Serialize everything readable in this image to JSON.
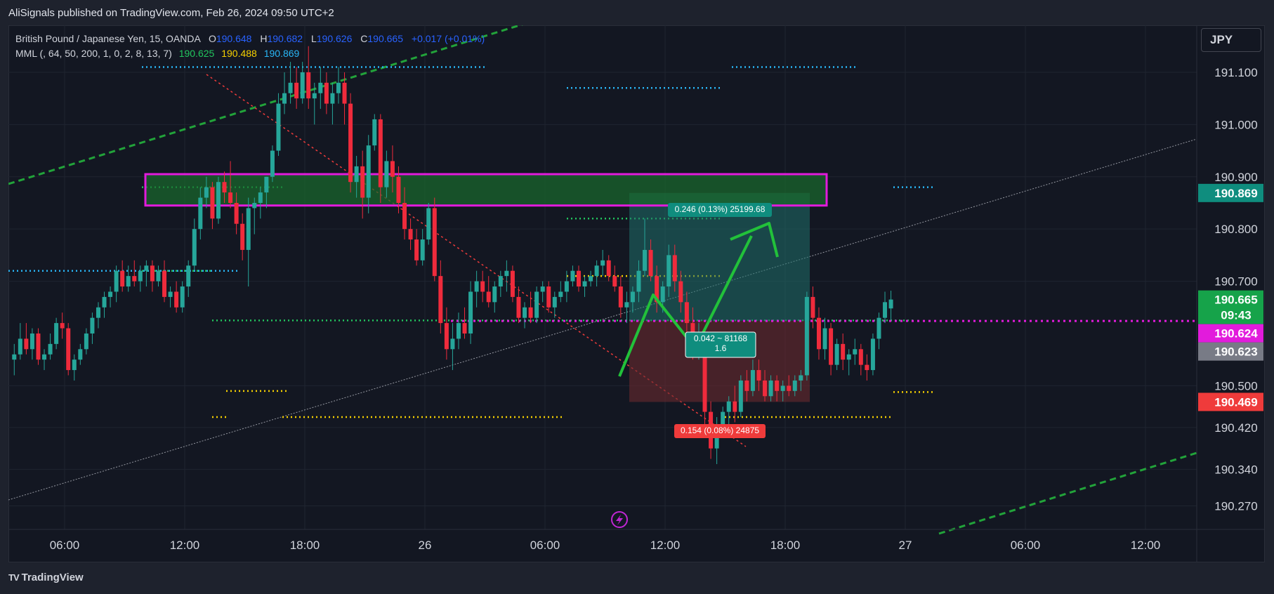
{
  "header": {
    "published": "AliSignals published on TradingView.com, Feb 26, 2024 09:50 UTC+2"
  },
  "legend": {
    "symbol": "British Pound / Japanese Yen, 15, OANDA",
    "ohlc": {
      "o_label": "O",
      "o": "190.648",
      "h_label": "H",
      "h": "190.682",
      "l_label": "L",
      "l": "190.626",
      "c_label": "C",
      "c": "190.665",
      "change": "+0.017 (+0.01%)"
    },
    "indicator": "MML (, 64, 50, 200, 1, 0, 2, 8, 13, 7)",
    "indicator_values": [
      "190.625",
      "190.488",
      "190.869"
    ]
  },
  "currency": "JPY",
  "footer": {
    "logo": "TV",
    "brand": "TradingView"
  },
  "colors": {
    "up": "#26a69a",
    "down": "#ef2b3c",
    "mml_green": "#22c55e",
    "mml_yellow": "#f5d000",
    "mml_blue": "#29b6f6",
    "zone": "#e21bdc",
    "arrow": "#22c13a"
  },
  "chart_data": {
    "type": "candlestick",
    "y_ticks": [
      "191.100",
      "191.000",
      "190.900",
      "190.800",
      "190.700",
      "190.500",
      "190.420",
      "190.340",
      "190.270"
    ],
    "x_ticks": [
      "06:00",
      "12:00",
      "18:00",
      "26",
      "06:00",
      "12:00",
      "18:00",
      "27",
      "06:00",
      "12:00"
    ],
    "ylim": [
      190.225,
      191.19
    ],
    "price_labels": [
      {
        "value": 190.869,
        "text": "190.869",
        "bg": "#0f8d7e",
        "fg": "#ffffff"
      },
      {
        "value": 190.665,
        "text": "190.665",
        "sub": "09:43",
        "bg": "#16a34a",
        "fg": "#ffffff"
      },
      {
        "value": 190.624,
        "text": "190.624",
        "bg": "#e21bdc",
        "fg": "#ffffff"
      },
      {
        "value": 190.623,
        "text": "190.623",
        "bg": "#787b86",
        "fg": "#ffffff"
      },
      {
        "value": 190.469,
        "text": "190.469",
        "bg": "#ef3b3b",
        "fg": "#ffffff"
      }
    ],
    "candles_ohlc": [
      [
        190.55,
        190.58,
        190.52,
        190.56
      ],
      [
        190.56,
        190.62,
        190.55,
        190.59
      ],
      [
        190.59,
        190.62,
        190.56,
        190.57
      ],
      [
        190.57,
        190.61,
        190.55,
        190.6
      ],
      [
        190.6,
        190.61,
        190.54,
        190.55
      ],
      [
        190.55,
        190.57,
        190.53,
        190.56
      ],
      [
        190.56,
        190.6,
        190.55,
        190.58
      ],
      [
        190.58,
        190.63,
        190.57,
        190.62
      ],
      [
        190.62,
        190.64,
        190.59,
        190.61
      ],
      [
        190.61,
        190.62,
        190.52,
        190.53
      ],
      [
        190.53,
        190.56,
        190.51,
        190.55
      ],
      [
        190.55,
        190.58,
        190.54,
        190.57
      ],
      [
        190.57,
        190.61,
        190.56,
        190.6
      ],
      [
        190.6,
        190.64,
        190.58,
        190.63
      ],
      [
        190.63,
        190.66,
        190.61,
        190.65
      ],
      [
        190.65,
        190.68,
        190.63,
        190.67
      ],
      [
        190.67,
        190.69,
        190.65,
        190.68
      ],
      [
        190.68,
        190.73,
        190.66,
        190.72
      ],
      [
        190.72,
        190.74,
        190.68,
        190.69
      ],
      [
        190.69,
        190.73,
        190.68,
        190.71
      ],
      [
        190.71,
        190.74,
        190.69,
        190.7
      ],
      [
        190.7,
        190.73,
        190.68,
        190.72
      ],
      [
        190.72,
        190.74,
        190.69,
        190.73
      ],
      [
        190.73,
        190.74,
        190.68,
        190.7
      ],
      [
        190.7,
        190.73,
        190.69,
        190.72
      ],
      [
        190.72,
        190.74,
        190.66,
        190.67
      ],
      [
        190.67,
        190.69,
        190.65,
        190.68
      ],
      [
        190.68,
        190.7,
        190.64,
        190.65
      ],
      [
        190.65,
        190.7,
        190.64,
        190.69
      ],
      [
        190.69,
        190.74,
        190.67,
        190.73
      ],
      [
        190.73,
        190.82,
        190.72,
        190.8
      ],
      [
        190.8,
        190.88,
        190.78,
        190.86
      ],
      [
        190.86,
        190.9,
        190.84,
        190.88
      ],
      [
        190.88,
        190.89,
        190.8,
        190.82
      ],
      [
        190.82,
        190.9,
        190.81,
        190.89
      ],
      [
        190.89,
        190.91,
        190.85,
        190.87
      ],
      [
        190.87,
        190.93,
        190.84,
        190.85
      ],
      [
        190.85,
        190.87,
        190.79,
        190.81
      ],
      [
        190.81,
        190.83,
        190.74,
        190.76
      ],
      [
        190.76,
        190.86,
        190.69,
        190.84
      ],
      [
        190.84,
        190.86,
        190.79,
        190.85
      ],
      [
        190.85,
        190.88,
        190.82,
        190.87
      ],
      [
        190.87,
        190.9,
        190.84,
        190.9
      ],
      [
        190.9,
        190.96,
        190.89,
        190.95
      ],
      [
        190.95,
        191.06,
        190.94,
        191.04
      ],
      [
        191.04,
        191.1,
        191.02,
        191.06
      ],
      [
        191.06,
        191.12,
        191.04,
        191.08
      ],
      [
        191.08,
        191.11,
        191.03,
        191.05
      ],
      [
        191.05,
        191.12,
        191.04,
        191.1
      ],
      [
        191.1,
        191.15,
        191.03,
        191.05
      ],
      [
        191.05,
        191.08,
        191.0,
        191.06
      ],
      [
        191.06,
        191.11,
        191.03,
        191.08
      ],
      [
        191.08,
        191.1,
        191.02,
        191.04
      ],
      [
        191.04,
        191.08,
        191.0,
        191.06
      ],
      [
        191.06,
        191.11,
        191.04,
        191.08
      ],
      [
        191.08,
        191.1,
        191.0,
        191.04
      ],
      [
        191.04,
        191.06,
        190.87,
        190.89
      ],
      [
        190.89,
        190.94,
        190.86,
        190.92
      ],
      [
        190.92,
        190.95,
        190.82,
        190.86
      ],
      [
        190.86,
        190.98,
        190.83,
        190.96
      ],
      [
        190.96,
        191.02,
        190.95,
        191.01
      ],
      [
        191.01,
        191.02,
        190.85,
        190.88
      ],
      [
        190.88,
        190.95,
        190.86,
        190.93
      ],
      [
        190.93,
        190.96,
        190.87,
        190.9
      ],
      [
        190.9,
        190.92,
        190.83,
        190.85
      ],
      [
        190.85,
        190.88,
        190.78,
        190.8
      ],
      [
        190.8,
        190.82,
        190.76,
        190.78
      ],
      [
        190.78,
        190.8,
        190.73,
        190.74
      ],
      [
        190.74,
        190.8,
        190.73,
        190.78
      ],
      [
        190.78,
        190.85,
        190.77,
        190.84
      ],
      [
        190.84,
        190.86,
        190.7,
        190.71
      ],
      [
        190.71,
        190.74,
        190.6,
        190.62
      ],
      [
        190.62,
        190.65,
        190.55,
        190.57
      ],
      [
        190.57,
        190.62,
        190.53,
        190.59
      ],
      [
        190.59,
        190.64,
        190.57,
        190.62
      ],
      [
        190.62,
        190.65,
        190.59,
        190.6
      ],
      [
        190.6,
        190.7,
        190.58,
        190.68
      ],
      [
        190.68,
        190.72,
        190.65,
        190.7
      ],
      [
        190.7,
        190.72,
        190.66,
        190.68
      ],
      [
        190.68,
        190.71,
        190.65,
        190.66
      ],
      [
        190.66,
        190.7,
        190.64,
        190.69
      ],
      [
        190.69,
        190.72,
        190.67,
        190.71
      ],
      [
        190.71,
        190.74,
        190.68,
        190.72
      ],
      [
        190.72,
        190.73,
        190.66,
        190.67
      ],
      [
        190.67,
        190.69,
        190.62,
        190.63
      ],
      [
        190.63,
        190.66,
        190.61,
        190.65
      ],
      [
        190.65,
        190.68,
        190.62,
        190.63
      ],
      [
        190.63,
        190.69,
        190.62,
        190.68
      ],
      [
        190.68,
        190.7,
        190.66,
        190.69
      ],
      [
        190.69,
        190.7,
        190.64,
        190.65
      ],
      [
        190.65,
        190.68,
        190.63,
        190.67
      ],
      [
        190.67,
        190.7,
        190.66,
        190.68
      ],
      [
        190.68,
        190.72,
        190.66,
        190.7
      ],
      [
        190.7,
        190.73,
        190.69,
        190.72
      ],
      [
        190.72,
        190.73,
        190.68,
        190.69
      ],
      [
        190.69,
        190.71,
        190.67,
        190.7
      ],
      [
        190.7,
        190.72,
        190.69,
        190.71
      ],
      [
        190.71,
        190.74,
        190.69,
        190.73
      ],
      [
        190.73,
        190.76,
        190.71,
        190.74
      ],
      [
        190.74,
        190.75,
        190.7,
        190.71
      ],
      [
        190.71,
        190.73,
        190.68,
        190.69
      ],
      [
        190.69,
        190.71,
        190.63,
        190.65
      ],
      [
        190.65,
        190.68,
        190.62,
        190.66
      ],
      [
        190.66,
        190.69,
        190.64,
        190.68
      ],
      [
        190.68,
        190.74,
        190.66,
        190.72
      ],
      [
        190.72,
        190.82,
        190.71,
        190.76
      ],
      [
        190.76,
        190.78,
        190.7,
        190.71
      ],
      [
        190.71,
        190.73,
        190.64,
        190.66
      ],
      [
        190.66,
        190.7,
        190.64,
        190.69
      ],
      [
        190.69,
        190.77,
        190.67,
        190.75
      ],
      [
        190.75,
        190.77,
        190.68,
        190.7
      ],
      [
        190.7,
        190.72,
        190.64,
        190.66
      ],
      [
        190.66,
        190.68,
        190.6,
        190.62
      ],
      [
        190.62,
        190.65,
        190.55,
        190.58
      ],
      [
        190.58,
        190.62,
        190.55,
        190.59
      ],
      [
        190.59,
        190.6,
        190.42,
        190.45
      ],
      [
        190.45,
        190.47,
        190.36,
        190.38
      ],
      [
        190.38,
        190.44,
        190.35,
        190.42
      ],
      [
        190.42,
        190.46,
        190.4,
        190.45
      ],
      [
        190.45,
        190.48,
        190.42,
        190.47
      ],
      [
        190.47,
        190.5,
        190.43,
        190.45
      ],
      [
        190.45,
        190.52,
        190.44,
        190.51
      ],
      [
        190.51,
        190.53,
        190.47,
        190.49
      ],
      [
        190.49,
        190.55,
        190.48,
        190.53
      ],
      [
        190.53,
        190.55,
        190.49,
        190.51
      ],
      [
        190.51,
        190.53,
        190.47,
        190.48
      ],
      [
        190.48,
        190.52,
        190.47,
        190.51
      ],
      [
        190.51,
        190.52,
        190.47,
        190.49
      ],
      [
        190.49,
        190.51,
        190.47,
        190.5
      ],
      [
        190.5,
        190.52,
        190.48,
        190.49
      ],
      [
        190.49,
        190.52,
        190.48,
        190.51
      ],
      [
        190.51,
        190.53,
        190.49,
        190.52
      ],
      [
        190.52,
        190.68,
        190.51,
        190.67
      ],
      [
        190.67,
        190.69,
        190.61,
        190.63
      ],
      [
        190.63,
        190.65,
        190.55,
        190.57
      ],
      [
        190.57,
        190.63,
        190.55,
        190.61
      ],
      [
        190.61,
        190.62,
        190.52,
        190.54
      ],
      [
        190.54,
        190.59,
        190.53,
        190.58
      ],
      [
        190.58,
        190.6,
        190.53,
        190.55
      ],
      [
        190.55,
        190.57,
        190.52,
        190.56
      ],
      [
        190.56,
        190.59,
        190.54,
        190.57
      ],
      [
        190.57,
        190.58,
        190.52,
        190.54
      ],
      [
        190.54,
        190.56,
        190.51,
        190.53
      ],
      [
        190.53,
        190.6,
        190.52,
        190.59
      ],
      [
        190.59,
        190.64,
        190.57,
        190.63
      ],
      [
        190.63,
        190.68,
        190.62,
        190.66
      ],
      [
        190.648,
        190.682,
        190.626,
        190.665
      ]
    ],
    "levels": [
      {
        "value": 191.11,
        "color": "#29b6f6",
        "from": 190,
        "to": 680
      },
      {
        "value": 191.11,
        "color": "#29b6f6",
        "from": 1030,
        "to": 1210
      },
      {
        "value": 191.07,
        "color": "#29b6f6",
        "from": 795,
        "to": 1015
      },
      {
        "value": 190.88,
        "color": "#29b6f6",
        "from": 1260,
        "to": 1320
      },
      {
        "value": 190.88,
        "color": "#22c55e",
        "from": 190,
        "to": 390
      },
      {
        "value": 190.82,
        "color": "#22c55e",
        "from": 795,
        "to": 1015
      },
      {
        "value": 190.72,
        "color": "#29b6f6",
        "from": 0,
        "to": 330
      },
      {
        "value": 190.72,
        "color": "#22c55e",
        "from": 190,
        "to": 290
      },
      {
        "value": 190.71,
        "color": "#f5d000",
        "from": 795,
        "to": 1015
      },
      {
        "value": 190.625,
        "color": "#22c55e",
        "from": 290,
        "to": 1290
      },
      {
        "value": 190.49,
        "color": "#f5d000",
        "from": 310,
        "to": 400
      },
      {
        "value": 190.488,
        "color": "#f5d000",
        "from": 1260,
        "to": 1320
      },
      {
        "value": 190.44,
        "color": "#f5d000",
        "from": 290,
        "to": 310
      },
      {
        "value": 190.44,
        "color": "#f5d000",
        "from": 390,
        "to": 790
      },
      {
        "value": 190.44,
        "color": "#f5d000",
        "from": 1020,
        "to": 1260
      }
    ],
    "trade": {
      "entry": 190.624,
      "target": 190.869,
      "stop": 190.469,
      "target_label": "0.246 (0.13%) 25199.68",
      "mid_label_1": "0.042 ~ 81168",
      "mid_label_2": "1.6",
      "stop_label": "0.154 (0.08%) 24875"
    },
    "zone": {
      "top": 190.905,
      "bottom": 190.845
    }
  }
}
